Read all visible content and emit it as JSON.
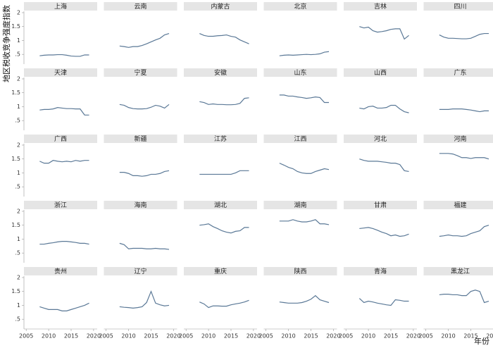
{
  "chart_data": {
    "type": "line",
    "y_label": "地区税收竞争强度指数",
    "x_label": "年份",
    "x": [
      2008,
      2009,
      2010,
      2011,
      2012,
      2013,
      2014,
      2015,
      2016,
      2017,
      2018,
      2019
    ],
    "xlim": [
      2004.5,
      2020.8
    ],
    "ylim": [
      0.15,
      2.05
    ],
    "xticks": [
      2005,
      2010,
      2015,
      2020
    ],
    "yticks": [
      {
        "value": 0.5,
        "label": ".5"
      },
      1,
      1.5,
      2
    ],
    "color": "#5a7896",
    "panels": [
      {
        "title": "上海",
        "values": [
          0.45,
          0.47,
          0.48,
          0.48,
          0.49,
          0.49,
          0.47,
          0.44,
          0.43,
          0.43,
          0.48,
          0.48
        ]
      },
      {
        "title": "云南",
        "values": [
          0.8,
          0.78,
          0.75,
          0.78,
          0.78,
          0.82,
          0.88,
          0.95,
          1.02,
          1.08,
          1.2,
          1.25
        ]
      },
      {
        "title": "内蒙古",
        "values": [
          1.25,
          1.18,
          1.15,
          1.15,
          1.17,
          1.18,
          1.2,
          1.15,
          1.12,
          1.02,
          0.95,
          0.88
        ]
      },
      {
        "title": "北京",
        "values": [
          0.45,
          0.47,
          0.48,
          0.47,
          0.48,
          0.49,
          0.5,
          0.49,
          0.5,
          0.52,
          0.58,
          0.6
        ]
      },
      {
        "title": "吉林",
        "values": [
          1.5,
          1.45,
          1.48,
          1.35,
          1.3,
          1.32,
          1.35,
          1.4,
          1.42,
          1.42,
          1.05,
          1.18
        ]
      },
      {
        "title": "四川",
        "values": [
          1.2,
          1.12,
          1.08,
          1.08,
          1.07,
          1.06,
          1.06,
          1.08,
          1.15,
          1.22,
          1.25,
          1.25
        ]
      },
      {
        "title": "天津",
        "values": [
          0.88,
          0.9,
          0.9,
          0.92,
          0.97,
          0.95,
          0.93,
          0.93,
          0.92,
          0.92,
          0.7,
          0.7
        ]
      },
      {
        "title": "宁夏",
        "values": [
          1.08,
          1.05,
          0.97,
          0.93,
          0.92,
          0.92,
          0.93,
          0.98,
          1.05,
          1.02,
          0.95,
          1.08
        ]
      },
      {
        "title": "安徽",
        "values": [
          1.18,
          1.15,
          1.08,
          1.1,
          1.08,
          1.08,
          1.07,
          1.07,
          1.08,
          1.12,
          1.3,
          1.32
        ]
      },
      {
        "title": "山东",
        "values": [
          1.42,
          1.42,
          1.38,
          1.38,
          1.35,
          1.33,
          1.3,
          1.32,
          1.35,
          1.33,
          1.15,
          1.15
        ]
      },
      {
        "title": "山西",
        "values": [
          0.95,
          0.92,
          1.0,
          1.02,
          0.95,
          0.95,
          0.97,
          1.05,
          1.05,
          0.92,
          0.82,
          0.78
        ]
      },
      {
        "title": "广东",
        "values": [
          0.9,
          0.9,
          0.9,
          0.92,
          0.92,
          0.92,
          0.9,
          0.88,
          0.85,
          0.82,
          0.85,
          0.85
        ]
      },
      {
        "title": "广西",
        "values": [
          1.42,
          1.35,
          1.35,
          1.45,
          1.42,
          1.4,
          1.42,
          1.4,
          1.45,
          1.42,
          1.45,
          1.45
        ]
      },
      {
        "title": "新疆",
        "values": [
          1.02,
          1.02,
          0.98,
          0.9,
          0.9,
          0.88,
          0.9,
          0.95,
          0.95,
          0.98,
          1.05,
          1.08
        ]
      },
      {
        "title": "江苏",
        "values": [
          0.95,
          0.95,
          0.95,
          0.95,
          0.95,
          0.95,
          0.95,
          0.95,
          1.0,
          1.08,
          1.08,
          1.08
        ]
      },
      {
        "title": "江西",
        "values": [
          1.35,
          1.28,
          1.2,
          1.15,
          1.05,
          1.0,
          0.98,
          0.98,
          1.05,
          1.1,
          1.15,
          1.12
        ]
      },
      {
        "title": "河北",
        "values": [
          1.5,
          1.45,
          1.42,
          1.42,
          1.42,
          1.4,
          1.38,
          1.35,
          1.35,
          1.3,
          1.08,
          1.05
        ]
      },
      {
        "title": "河南",
        "values": [
          1.7,
          1.7,
          1.7,
          1.68,
          1.62,
          1.55,
          1.55,
          1.52,
          1.55,
          1.55,
          1.55,
          1.5
        ]
      },
      {
        "title": "浙江",
        "values": [
          0.82,
          0.82,
          0.85,
          0.87,
          0.9,
          0.92,
          0.92,
          0.9,
          0.88,
          0.85,
          0.85,
          0.82
        ]
      },
      {
        "title": "海南",
        "values": [
          0.85,
          0.8,
          0.65,
          0.67,
          0.67,
          0.67,
          0.65,
          0.65,
          0.67,
          0.65,
          0.65,
          0.63
        ]
      },
      {
        "title": "湖北",
        "values": [
          1.5,
          1.52,
          1.55,
          1.45,
          1.38,
          1.3,
          1.25,
          1.22,
          1.28,
          1.3,
          1.42,
          1.42
        ]
      },
      {
        "title": "湖南",
        "values": [
          1.65,
          1.65,
          1.65,
          1.7,
          1.65,
          1.62,
          1.62,
          1.65,
          1.7,
          1.55,
          1.55,
          1.52
        ]
      },
      {
        "title": "甘肃",
        "values": [
          1.38,
          1.4,
          1.42,
          1.38,
          1.32,
          1.25,
          1.2,
          1.12,
          1.15,
          1.1,
          1.12,
          1.18
        ]
      },
      {
        "title": "福建",
        "values": [
          1.1,
          1.12,
          1.15,
          1.12,
          1.12,
          1.1,
          1.12,
          1.2,
          1.25,
          1.3,
          1.45,
          1.5
        ]
      },
      {
        "title": "贵州",
        "values": [
          0.95,
          0.9,
          0.85,
          0.85,
          0.85,
          0.8,
          0.8,
          0.85,
          0.9,
          0.95,
          1.0,
          1.08
        ]
      },
      {
        "title": "辽宁",
        "values": [
          0.95,
          0.93,
          0.92,
          0.9,
          0.92,
          0.95,
          1.1,
          1.5,
          1.08,
          1.02,
          0.98,
          1.0
        ]
      },
      {
        "title": "重庆",
        "values": [
          1.12,
          1.05,
          0.92,
          0.98,
          0.98,
          0.97,
          0.97,
          1.02,
          1.05,
          1.08,
          1.12,
          1.18
        ]
      },
      {
        "title": "陕西",
        "values": [
          1.12,
          1.1,
          1.08,
          1.08,
          1.08,
          1.1,
          1.15,
          1.22,
          1.35,
          1.2,
          1.15,
          1.1
        ]
      },
      {
        "title": "青海",
        "values": [
          1.25,
          1.1,
          1.15,
          1.12,
          1.08,
          1.05,
          1.02,
          1.0,
          1.2,
          1.18,
          1.15,
          1.15
        ]
      },
      {
        "title": "黑龙江",
        "values": [
          1.38,
          1.4,
          1.4,
          1.38,
          1.38,
          1.35,
          1.35,
          1.5,
          1.55,
          1.5,
          1.1,
          1.15
        ]
      }
    ]
  }
}
